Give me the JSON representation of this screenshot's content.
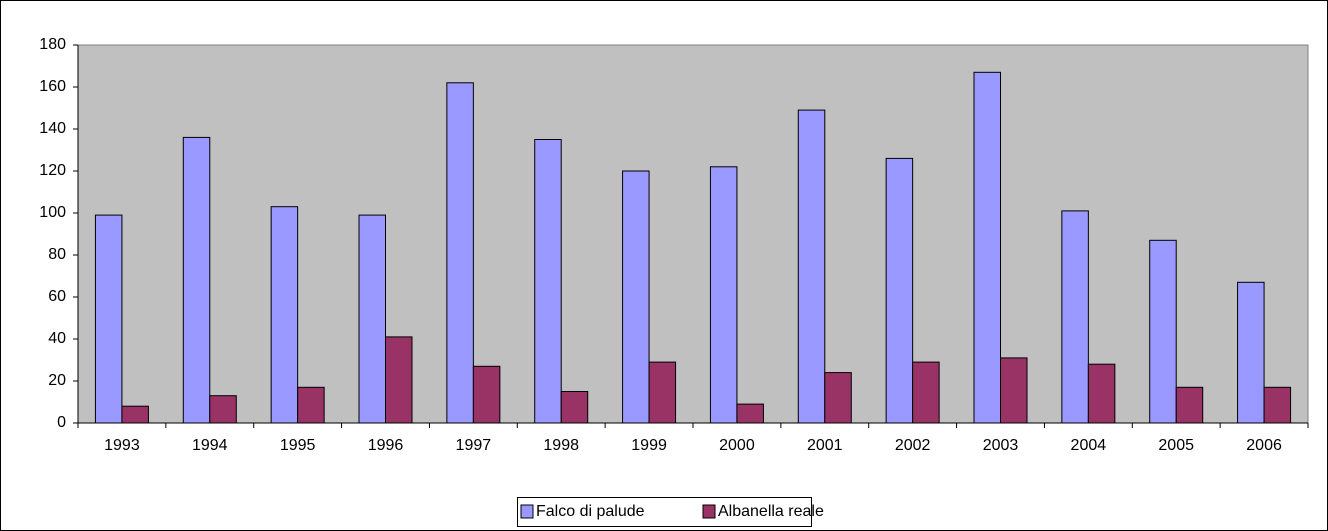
{
  "chart_data": {
    "type": "bar",
    "categories": [
      "1993",
      "1994",
      "1995",
      "1996",
      "1997",
      "1998",
      "1999",
      "2000",
      "2001",
      "2002",
      "2003",
      "2004",
      "2005",
      "2006"
    ],
    "series": [
      {
        "name": "Falco di palude",
        "color": "#9999ff",
        "values": [
          99,
          136,
          103,
          99,
          162,
          135,
          120,
          122,
          149,
          126,
          167,
          101,
          87,
          67
        ]
      },
      {
        "name": "Albanella reale",
        "color": "#993366",
        "values": [
          8,
          13,
          17,
          41,
          27,
          15,
          29,
          9,
          24,
          29,
          31,
          28,
          17,
          17
        ]
      }
    ],
    "ylim": [
      0,
      180
    ],
    "yticks": [
      0,
      20,
      40,
      60,
      80,
      100,
      120,
      140,
      160,
      180
    ],
    "grid": false,
    "legend": "bottom"
  }
}
